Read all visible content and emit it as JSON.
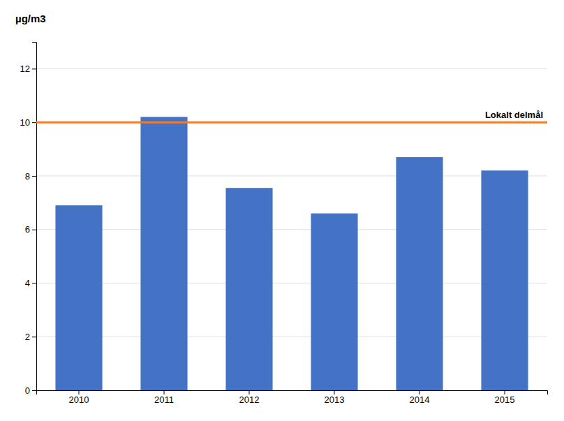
{
  "chart_data": {
    "type": "bar",
    "ylabel": "µg/m3",
    "categories": [
      "2010",
      "2011",
      "2012",
      "2013",
      "2014",
      "2015"
    ],
    "values": [
      6.9,
      10.2,
      7.55,
      6.6,
      8.7,
      8.2
    ],
    "color": "#4472C4",
    "ylim": [
      0,
      13
    ],
    "yticks": [
      0,
      2,
      4,
      6,
      8,
      10,
      12
    ],
    "grid": true,
    "reference_line": {
      "value": 10.0,
      "label": "Lokalt delmål",
      "color": "#ED7D31"
    }
  }
}
